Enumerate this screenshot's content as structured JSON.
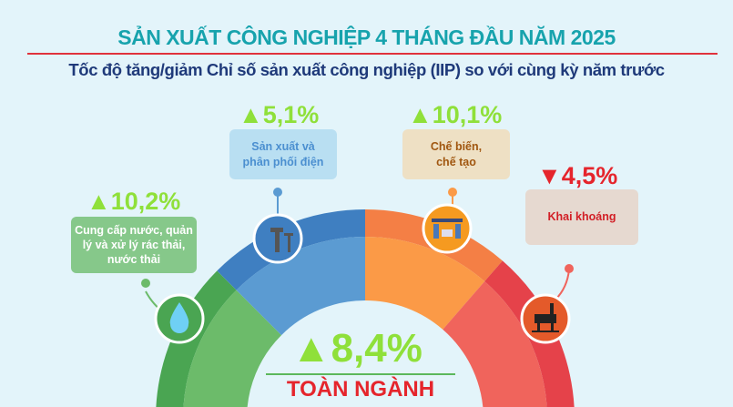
{
  "title": "SẢN XUẤT CÔNG NGHIỆP 4 THÁNG ĐẦU NĂM 2025",
  "subtitle": "Tốc độ tăng/giảm Chỉ số sản xuất công nghiệp (IIP) so với cùng kỳ năm trước",
  "sectors": [
    {
      "name": "Cung cấp nước, quản lý và xử lý rác thải, nước thải",
      "value": "10,2%",
      "direction": "up",
      "icon": "water-drop-icon",
      "color": "#6cbb6a"
    },
    {
      "name": "Sản xuất và phân phối điện",
      "value": "5,1%",
      "direction": "up",
      "icon": "power-pole-icon",
      "color": "#5b9bd2"
    },
    {
      "name": "Chế biến, chế tạo",
      "value": "10,1%",
      "direction": "up",
      "icon": "factory-workers-icon",
      "color": "#fb9a47"
    },
    {
      "name": "Khai khoáng",
      "value": "4,5%",
      "direction": "down",
      "icon": "oil-rig-icon",
      "color": "#f0645c"
    }
  ],
  "total": {
    "value": "8,4%",
    "direction": "up",
    "label": "TOÀN NGÀNH"
  },
  "colors": {
    "up": "#8fe03a",
    "down": "#e5252c",
    "title": "#17a3ad",
    "subtitle": "#1f3a7a"
  }
}
